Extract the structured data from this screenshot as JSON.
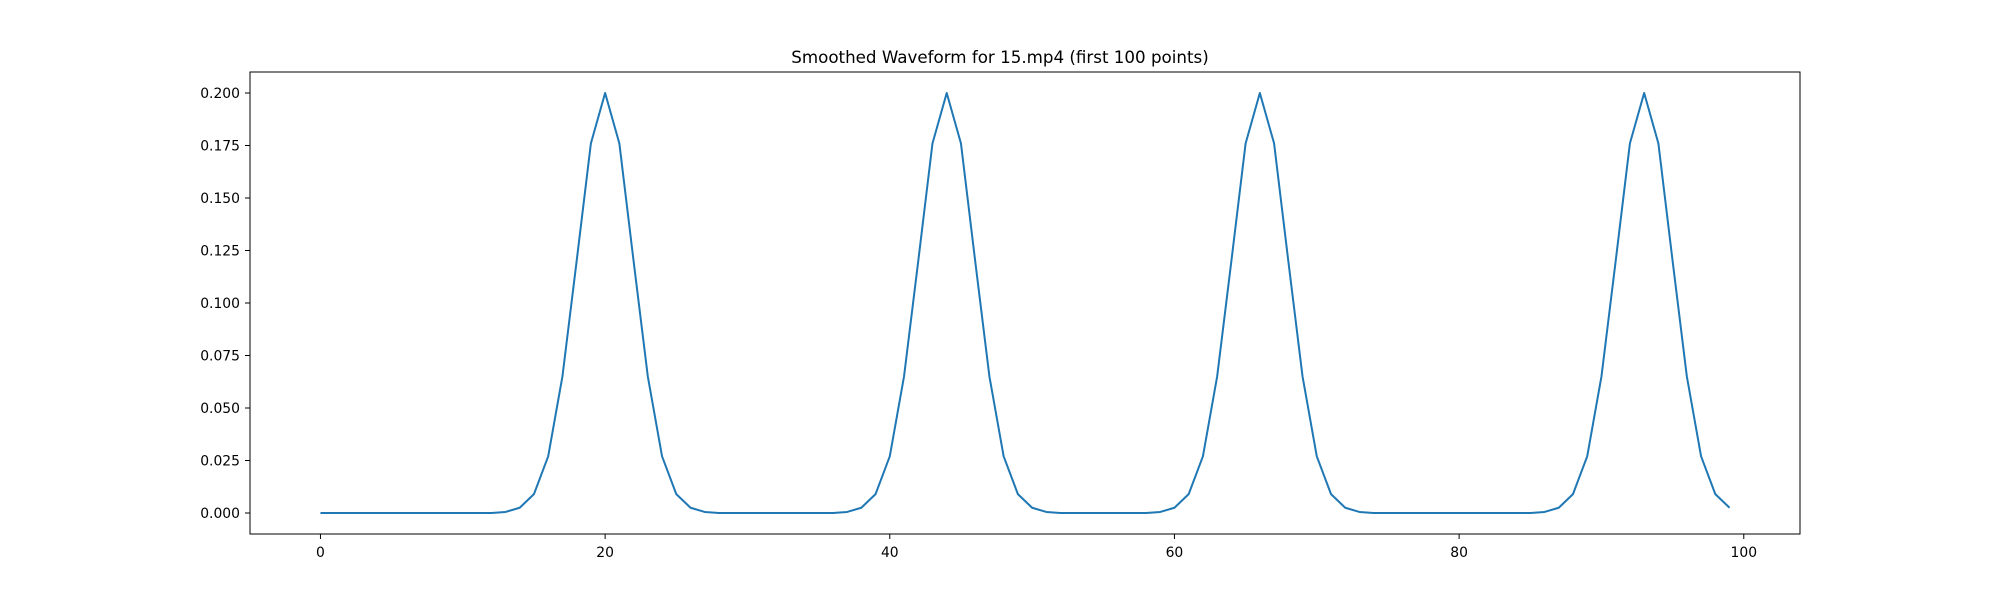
{
  "chart_data": {
    "type": "line",
    "title": "Smoothed Waveform for 15.mp4 (first 100 points)",
    "xlabel": "",
    "ylabel": "",
    "xlim": [
      -4.95,
      103.95
    ],
    "ylim": [
      -0.01,
      0.21
    ],
    "xticks": [
      0,
      20,
      40,
      60,
      80,
      100
    ],
    "xtick_labels": [
      "0",
      "20",
      "40",
      "60",
      "80",
      "100"
    ],
    "yticks": [
      0.0,
      0.025,
      0.05,
      0.075,
      0.1,
      0.125,
      0.15,
      0.175,
      0.2
    ],
    "ytick_labels": [
      "0.000",
      "0.025",
      "0.050",
      "0.075",
      "0.100",
      "0.125",
      "0.150",
      "0.175",
      "0.200"
    ],
    "grid": false,
    "series": [
      {
        "color": "#1f77b4",
        "x": [
          0,
          1,
          2,
          3,
          4,
          5,
          6,
          7,
          8,
          9,
          10,
          11,
          12,
          13,
          14,
          15,
          16,
          17,
          18,
          19,
          20,
          21,
          22,
          23,
          24,
          25,
          26,
          27,
          28,
          29,
          30,
          31,
          32,
          33,
          34,
          35,
          36,
          37,
          38,
          39,
          40,
          41,
          42,
          43,
          44,
          45,
          46,
          47,
          48,
          49,
          50,
          51,
          52,
          53,
          54,
          55,
          56,
          57,
          58,
          59,
          60,
          61,
          62,
          63,
          64,
          65,
          66,
          67,
          68,
          69,
          70,
          71,
          72,
          73,
          74,
          75,
          76,
          77,
          78,
          79,
          80,
          81,
          82,
          83,
          84,
          85,
          86,
          87,
          88,
          89,
          90,
          91,
          92,
          93,
          94,
          95,
          96,
          97,
          98,
          99
        ],
        "y": [
          0,
          0,
          0,
          0,
          0,
          0,
          0,
          0,
          0,
          0,
          0,
          0,
          0,
          0.0005,
          0.0025,
          0.009,
          0.027,
          0.065,
          0.12,
          0.176,
          0.2,
          0.176,
          0.12,
          0.065,
          0.027,
          0.009,
          0.0025,
          0.0005,
          0,
          0,
          0,
          0,
          0,
          0,
          0,
          0,
          0,
          0.0005,
          0.0025,
          0.009,
          0.027,
          0.065,
          0.12,
          0.176,
          0.2,
          0.176,
          0.12,
          0.065,
          0.027,
          0.009,
          0.0025,
          0.0005,
          0,
          0,
          0,
          0,
          0,
          0,
          0,
          0.0005,
          0.0025,
          0.009,
          0.027,
          0.065,
          0.12,
          0.176,
          0.2,
          0.176,
          0.12,
          0.065,
          0.027,
          0.009,
          0.0025,
          0.0005,
          0,
          0,
          0,
          0,
          0,
          0,
          0,
          0,
          0,
          0,
          0,
          0,
          0.0005,
          0.0025,
          0.009,
          0.027,
          0.065,
          0.12,
          0.176,
          0.2,
          0.176,
          0.12,
          0.065,
          0.027,
          0.009,
          0.0025
        ]
      }
    ]
  }
}
